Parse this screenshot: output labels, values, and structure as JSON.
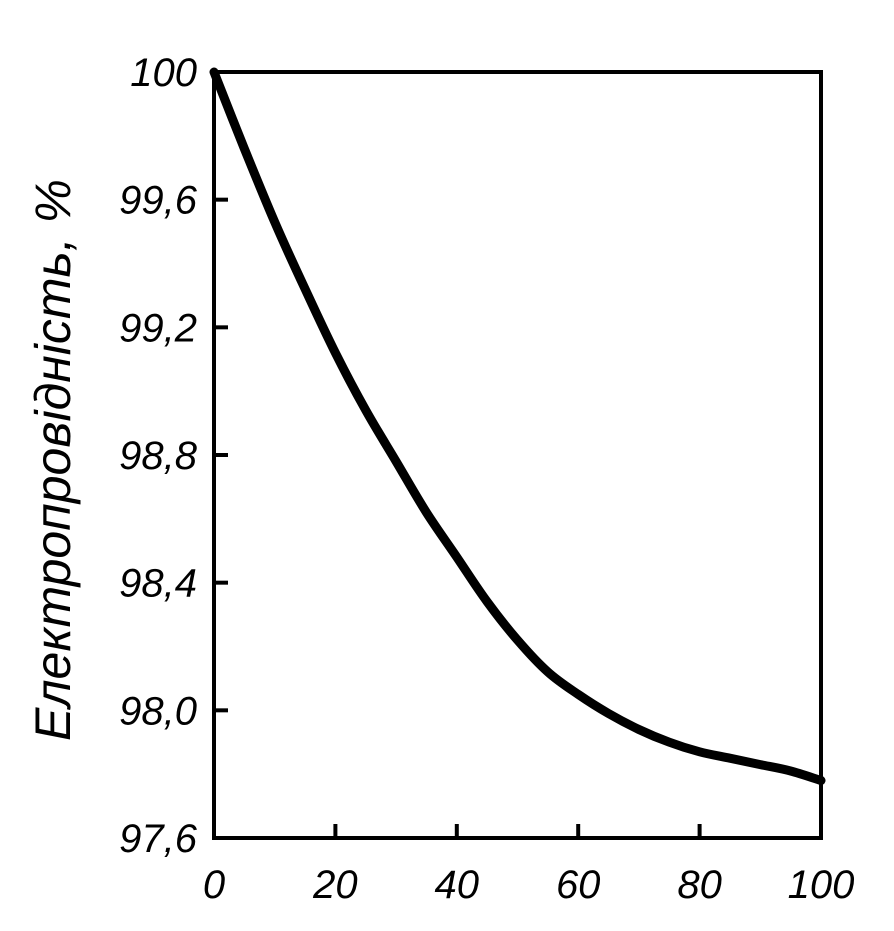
{
  "chart_data": {
    "type": "line",
    "title": "",
    "xlabel": "",
    "ylabel": "Електропровідність, %",
    "xlim": [
      0,
      100
    ],
    "ylim": [
      97.6,
      100
    ],
    "xticks": [
      0,
      20,
      40,
      60,
      80,
      100
    ],
    "xtick_labels": [
      "0",
      "20",
      "40",
      "60",
      "80",
      "100"
    ],
    "yticks": [
      97.6,
      98.0,
      98.4,
      98.8,
      99.2,
      99.6,
      100
    ],
    "ytick_labels": [
      "97,6",
      "98,0",
      "98,4",
      "98,8",
      "99,2",
      "99,6",
      "100"
    ],
    "grid": false,
    "series": [
      {
        "x": [
          0,
          5,
          10,
          15,
          20,
          25,
          30,
          35,
          40,
          45,
          50,
          55,
          60,
          65,
          70,
          75,
          80,
          85,
          90,
          95,
          100
        ],
        "y": [
          100.0,
          99.76,
          99.53,
          99.32,
          99.12,
          98.94,
          98.78,
          98.62,
          98.48,
          98.34,
          98.22,
          98.12,
          98.05,
          97.99,
          97.94,
          97.9,
          97.87,
          97.85,
          97.83,
          97.81,
          97.78
        ],
        "color": "#000000"
      }
    ]
  }
}
